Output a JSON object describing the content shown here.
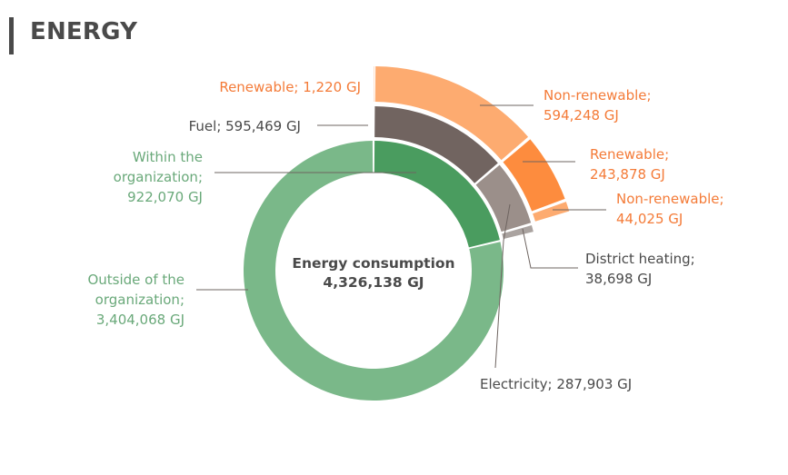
{
  "header": {
    "title": "ENERGY"
  },
  "chart_data": {
    "type": "sunburst",
    "title": "ENERGY",
    "unit": "GJ",
    "center": {
      "label": "Energy consumption",
      "value_text": "4,326,138 GJ",
      "value": 4326138
    },
    "colors": {
      "within": "#4a9c5f",
      "outside": "#7ab889",
      "fuel": "#716460",
      "electricity": "#9b8f8a",
      "district": "#aaa3a0",
      "orange_light": "#fdab70",
      "orange": "#fd8c3e",
      "label_green": "#6aa97a",
      "label_orange": "#f47b38",
      "label_dark": "#4a4a4a",
      "leader": "#6e6460"
    },
    "rings": [
      {
        "level": 1,
        "segments": [
          {
            "id": "within",
            "name": "Within the organization",
            "value": 922070,
            "label_lines": [
              "Within the",
              "organization;",
              "922,070 GJ"
            ],
            "color_key": "within",
            "label_color_key": "label_green"
          },
          {
            "id": "outside",
            "name": "Outside of the organization",
            "value": 3404068,
            "label_lines": [
              "Outside of the",
              "organization;",
              "3,404,068 GJ"
            ],
            "color_key": "outside",
            "label_color_key": "label_green"
          }
        ]
      },
      {
        "level": 2,
        "segments": [
          {
            "id": "fuel",
            "name": "Fuel",
            "value": 595469,
            "label_lines": [
              "Fuel; 595,469 GJ"
            ],
            "color_key": "fuel",
            "label_color_key": "label_dark"
          },
          {
            "id": "electricity",
            "name": "Electricity",
            "value": 287903,
            "label_lines": [
              "Electricity; 287,903 GJ"
            ],
            "color_key": "electricity",
            "label_color_key": "label_dark"
          },
          {
            "id": "district",
            "name": "District heating",
            "value": 38698,
            "label_lines": [
              "District heating;",
              "38,698 GJ"
            ],
            "color_key": "district",
            "label_color_key": "label_dark"
          }
        ]
      },
      {
        "level": 3,
        "segments": [
          {
            "id": "fuel-renewable",
            "name": "Renewable",
            "parent": "Fuel",
            "value": 1220,
            "label_lines": [
              "Renewable; 1,220 GJ"
            ],
            "color_key": "orange",
            "label_color_key": "label_orange"
          },
          {
            "id": "fuel-nonrenewable",
            "name": "Non-renewable",
            "parent": "Fuel",
            "value": 594248,
            "label_lines": [
              "Non-renewable;",
              "594,248 GJ"
            ],
            "color_key": "orange_light",
            "label_color_key": "label_orange"
          },
          {
            "id": "elec-renewable",
            "name": "Renewable",
            "parent": "Electricity",
            "value": 243878,
            "label_lines": [
              "Renewable;",
              "243,878 GJ"
            ],
            "color_key": "orange",
            "label_color_key": "label_orange"
          },
          {
            "id": "elec-nonrenewable",
            "name": "Non-renewable",
            "parent": "Electricity",
            "value": 44025,
            "label_lines": [
              "Non-renewable;",
              "44,025 GJ"
            ],
            "color_key": "orange_light",
            "label_color_key": "label_orange"
          }
        ]
      }
    ]
  }
}
